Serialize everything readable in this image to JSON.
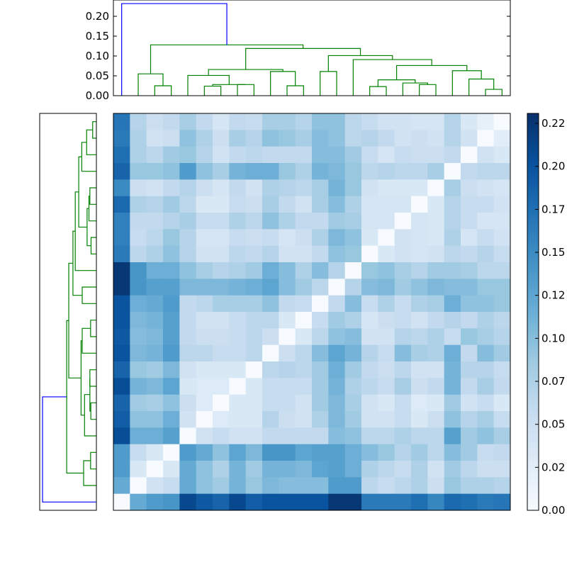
{
  "chart_data": {
    "type": "heatmap",
    "title": "",
    "xlabel": "",
    "ylabel": "",
    "colormap": "Blues",
    "vmin": 0.0,
    "vmax": 0.2308,
    "n": 24,
    "matrix": [
      [
        0.17,
        0.07,
        0.05,
        0.06,
        0.08,
        0.06,
        0.04,
        0.06,
        0.055,
        0.08,
        0.08,
        0.07,
        0.095,
        0.095,
        0.065,
        0.055,
        0.045,
        0.045,
        0.04,
        0.04,
        0.07,
        0.035,
        0.02,
        0.0
      ],
      [
        0.165,
        0.075,
        0.045,
        0.05,
        0.095,
        0.075,
        0.05,
        0.08,
        0.07,
        0.095,
        0.09,
        0.08,
        0.1,
        0.095,
        0.065,
        0.07,
        0.06,
        0.045,
        0.05,
        0.045,
        0.07,
        0.045,
        0.0,
        0.025
      ],
      [
        0.175,
        0.075,
        0.065,
        0.085,
        0.09,
        0.07,
        0.045,
        0.06,
        0.065,
        0.06,
        0.06,
        0.06,
        0.1,
        0.1,
        0.085,
        0.055,
        0.04,
        0.055,
        0.05,
        0.05,
        0.06,
        0.0,
        0.045,
        0.035
      ],
      [
        0.185,
        0.09,
        0.09,
        0.095,
        0.135,
        0.095,
        0.08,
        0.11,
        0.115,
        0.115,
        0.09,
        0.075,
        0.11,
        0.105,
        0.09,
        0.065,
        0.07,
        0.065,
        0.065,
        0.08,
        0.0,
        0.06,
        0.065,
        0.065
      ],
      [
        0.15,
        0.05,
        0.045,
        0.06,
        0.07,
        0.05,
        0.04,
        0.06,
        0.045,
        0.075,
        0.07,
        0.065,
        0.08,
        0.11,
        0.09,
        0.045,
        0.035,
        0.035,
        0.035,
        0.0,
        0.08,
        0.05,
        0.045,
        0.04
      ],
      [
        0.18,
        0.075,
        0.07,
        0.085,
        0.065,
        0.035,
        0.035,
        0.055,
        0.05,
        0.08,
        0.06,
        0.045,
        0.08,
        0.1,
        0.075,
        0.04,
        0.04,
        0.04,
        0.0,
        0.035,
        0.07,
        0.055,
        0.055,
        0.045
      ],
      [
        0.16,
        0.06,
        0.06,
        0.07,
        0.08,
        0.055,
        0.055,
        0.075,
        0.065,
        0.095,
        0.075,
        0.06,
        0.06,
        0.085,
        0.08,
        0.04,
        0.04,
        0.0,
        0.04,
        0.035,
        0.07,
        0.055,
        0.04,
        0.04
      ],
      [
        0.16,
        0.055,
        0.065,
        0.09,
        0.07,
        0.04,
        0.04,
        0.055,
        0.05,
        0.055,
        0.04,
        0.05,
        0.075,
        0.105,
        0.095,
        0.035,
        0.0,
        0.045,
        0.04,
        0.035,
        0.075,
        0.04,
        0.055,
        0.045
      ],
      [
        0.165,
        0.065,
        0.075,
        0.095,
        0.07,
        0.045,
        0.045,
        0.065,
        0.06,
        0.07,
        0.045,
        0.045,
        0.06,
        0.095,
        0.09,
        0.0,
        0.035,
        0.045,
        0.04,
        0.045,
        0.065,
        0.06,
        0.07,
        0.055
      ],
      [
        0.225,
        0.14,
        0.115,
        0.115,
        0.095,
        0.08,
        0.07,
        0.075,
        0.085,
        0.115,
        0.1,
        0.075,
        0.1,
        0.07,
        0.0,
        0.09,
        0.095,
        0.08,
        0.07,
        0.085,
        0.085,
        0.08,
        0.065,
        0.065
      ],
      [
        0.225,
        0.14,
        0.13,
        0.13,
        0.105,
        0.105,
        0.105,
        0.11,
        0.115,
        0.125,
        0.1,
        0.085,
        0.065,
        0.0,
        0.07,
        0.1,
        0.105,
        0.085,
        0.095,
        0.105,
        0.1,
        0.1,
        0.09,
        0.09
      ],
      [
        0.2,
        0.115,
        0.12,
        0.135,
        0.06,
        0.065,
        0.08,
        0.08,
        0.08,
        0.095,
        0.06,
        0.055,
        0.0,
        0.06,
        0.1,
        0.055,
        0.075,
        0.055,
        0.075,
        0.08,
        0.115,
        0.095,
        0.095,
        0.09
      ],
      [
        0.2,
        0.105,
        0.11,
        0.13,
        0.06,
        0.045,
        0.045,
        0.055,
        0.065,
        0.065,
        0.035,
        0.0,
        0.055,
        0.085,
        0.075,
        0.04,
        0.05,
        0.055,
        0.045,
        0.06,
        0.07,
        0.06,
        0.075,
        0.065
      ],
      [
        0.195,
        0.1,
        0.105,
        0.13,
        0.06,
        0.05,
        0.05,
        0.055,
        0.065,
        0.05,
        0.0,
        0.035,
        0.065,
        0.095,
        0.1,
        0.045,
        0.045,
        0.07,
        0.065,
        0.075,
        0.055,
        0.09,
        0.08,
        0.07
      ],
      [
        0.2,
        0.105,
        0.11,
        0.135,
        0.065,
        0.065,
        0.055,
        0.055,
        0.065,
        0.0,
        0.05,
        0.065,
        0.1,
        0.125,
        0.11,
        0.07,
        0.055,
        0.1,
        0.08,
        0.075,
        0.115,
        0.06,
        0.1,
        0.085
      ],
      [
        0.185,
        0.09,
        0.085,
        0.105,
        0.045,
        0.035,
        0.035,
        0.035,
        0.0,
        0.065,
        0.07,
        0.065,
        0.085,
        0.115,
        0.085,
        0.06,
        0.05,
        0.065,
        0.045,
        0.045,
        0.11,
        0.07,
        0.07,
        0.055
      ],
      [
        0.205,
        0.11,
        0.105,
        0.125,
        0.035,
        0.03,
        0.03,
        0.0,
        0.035,
        0.055,
        0.055,
        0.055,
        0.085,
        0.11,
        0.075,
        0.065,
        0.055,
        0.08,
        0.05,
        0.06,
        0.11,
        0.06,
        0.08,
        0.06
      ],
      [
        0.185,
        0.085,
        0.08,
        0.095,
        0.05,
        0.03,
        0.0,
        0.035,
        0.035,
        0.055,
        0.055,
        0.045,
        0.085,
        0.105,
        0.08,
        0.045,
        0.035,
        0.055,
        0.03,
        0.035,
        0.085,
        0.045,
        0.055,
        0.035
      ],
      [
        0.19,
        0.095,
        0.095,
        0.115,
        0.045,
        0.0,
        0.03,
        0.035,
        0.035,
        0.07,
        0.05,
        0.045,
        0.075,
        0.105,
        0.085,
        0.045,
        0.045,
        0.055,
        0.035,
        0.05,
        0.095,
        0.07,
        0.08,
        0.055
      ],
      [
        0.205,
        0.115,
        0.115,
        0.13,
        0.0,
        0.045,
        0.055,
        0.045,
        0.045,
        0.06,
        0.06,
        0.06,
        0.06,
        0.1,
        0.095,
        0.065,
        0.065,
        0.075,
        0.065,
        0.065,
        0.13,
        0.085,
        0.095,
        0.08
      ],
      [
        0.135,
        0.055,
        0.035,
        0.0,
        0.135,
        0.12,
        0.095,
        0.125,
        0.105,
        0.14,
        0.14,
        0.125,
        0.13,
        0.13,
        0.115,
        0.1,
        0.09,
        0.07,
        0.085,
        0.065,
        0.1,
        0.085,
        0.055,
        0.06
      ],
      [
        0.135,
        0.035,
        0.0,
        0.035,
        0.12,
        0.095,
        0.075,
        0.11,
        0.085,
        0.11,
        0.11,
        0.105,
        0.125,
        0.13,
        0.115,
        0.075,
        0.065,
        0.055,
        0.075,
        0.045,
        0.085,
        0.065,
        0.05,
        0.05
      ],
      [
        0.12,
        0.0,
        0.045,
        0.055,
        0.12,
        0.095,
        0.085,
        0.11,
        0.09,
        0.105,
        0.1,
        0.1,
        0.1,
        0.135,
        0.135,
        0.065,
        0.055,
        0.065,
        0.075,
        0.05,
        0.09,
        0.075,
        0.075,
        0.07
      ],
      [
        0.0,
        0.12,
        0.135,
        0.14,
        0.21,
        0.195,
        0.185,
        0.21,
        0.19,
        0.2,
        0.2,
        0.2,
        0.2,
        0.225,
        0.225,
        0.165,
        0.165,
        0.165,
        0.175,
        0.155,
        0.18,
        0.175,
        0.165,
        0.17
      ]
    ],
    "top_dendrogram": {
      "yaxis_ticks": [
        "0.00",
        "0.05",
        "0.10",
        "0.15",
        "0.20"
      ],
      "yaxis_values": [
        0.0,
        0.05,
        0.1,
        0.15,
        0.2
      ],
      "ylim": [
        0.0,
        0.235
      ],
      "link_colors": {
        "above_threshold": "#0000ff",
        "cluster": "#008000"
      },
      "links": [
        {
          "leaves": [
            0,
            "R"
          ],
          "h": 0.232,
          "color": "#0000ff"
        },
        {
          "leaves": [
            "L1",
            "L2"
          ],
          "h": 0.128,
          "note": "root of green cluster"
        },
        {
          "leaves": [
            1,
            "2-3"
          ],
          "h": 0.055
        },
        {
          "leaves": [
            2,
            3
          ],
          "h": 0.025
        },
        {
          "leaves": [
            "4-11",
            "12-23"
          ],
          "h": 0.119
        },
        {
          "leaves": [
            "4-8",
            "9-11"
          ],
          "h": 0.066
        },
        {
          "leaves": [
            4,
            "5-8"
          ],
          "h": 0.051
        },
        {
          "leaves": [
            "5-6",
            "7-8"
          ],
          "h": 0.028
        },
        {
          "leaves": [
            5,
            6
          ],
          "h": 0.024
        },
        {
          "leaves": [
            7,
            8
          ],
          "h": 0.028
        },
        {
          "leaves": [
            9,
            "10-11"
          ],
          "h": 0.061
        },
        {
          "leaves": [
            10,
            11
          ],
          "h": 0.025
        },
        {
          "leaves": [
            "12-13",
            "14-23"
          ],
          "h": 0.101
        },
        {
          "leaves": [
            12,
            13
          ],
          "h": 0.061
        },
        {
          "leaves": [
            14,
            "15-23"
          ],
          "h": 0.091
        },
        {
          "leaves": [
            "15-19",
            "20-23"
          ],
          "h": 0.076
        },
        {
          "leaves": [
            "15-16",
            "17-19"
          ],
          "h": 0.04
        },
        {
          "leaves": [
            15,
            16
          ],
          "h": 0.023
        },
        {
          "leaves": [
            17,
            "18-19"
          ],
          "h": 0.032
        },
        {
          "leaves": [
            18,
            19
          ],
          "h": 0.028
        },
        {
          "leaves": [
            20,
            "21-23"
          ],
          "h": 0.063
        },
        {
          "leaves": [
            21,
            "22-23"
          ],
          "h": 0.042
        },
        {
          "leaves": [
            22,
            23
          ],
          "h": 0.016
        }
      ]
    },
    "left_dendrogram": {
      "orientation": "mirrored (leaf 0 at bottom)",
      "same_structure_as": "top_dendrogram"
    },
    "colorbar": {
      "ticks": [
        "0.00",
        "0.02",
        "0.05",
        "0.07",
        "0.10",
        "0.12",
        "0.15",
        "0.17",
        "0.20",
        "0.22"
      ],
      "tick_values": [
        0.0,
        0.025,
        0.05,
        0.075,
        0.1,
        0.125,
        0.15,
        0.175,
        0.2,
        0.225
      ]
    },
    "grid": false,
    "legend": null
  }
}
